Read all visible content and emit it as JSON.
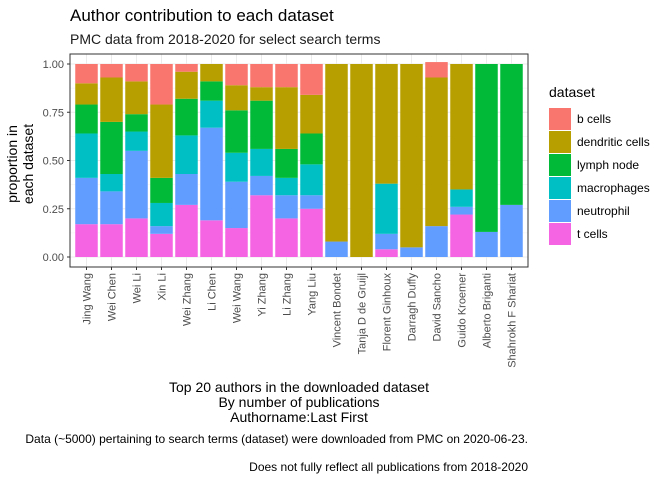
{
  "chart_data": {
    "type": "bar",
    "stacked": true,
    "title": "Author contribution to each dataset",
    "subtitle": "PMC data from 2018-2020 for select search terms",
    "ylabel_lines": [
      "proportion in",
      "each dataset"
    ],
    "xlabel_lines": [
      "Top 20 authors in the downloaded dataset",
      "By number of publications",
      "Authorname:Last First"
    ],
    "captions": [
      "Data (~5000) pertaining to search terms (dataset) were downloaded from PMC on 2020-06-23.",
      "Does not fully reflect all publications from 2018-2020"
    ],
    "ylim": [
      0,
      1
    ],
    "y_ticks": [
      {
        "value": 0,
        "label": "0.00"
      },
      {
        "value": 0.25,
        "label": "0.25"
      },
      {
        "value": 0.5,
        "label": "0.50"
      },
      {
        "value": 0.75,
        "label": "0.75"
      },
      {
        "value": 1,
        "label": "1.00"
      }
    ],
    "categories": [
      "Jing Wang",
      "Wei Chen",
      "Wei Li",
      "Xin Li",
      "Wei Zhang",
      "Li Chen",
      "Wei Wang",
      "Yi Zhang",
      "Li Zhang",
      "Yang Liu",
      "Vincent Bondet",
      "Tanja D de Gruijl",
      "Florent Ginhoux",
      "Darragh Duffy",
      "David Sancho",
      "Guido Kroemer",
      "Alberto Briganti",
      "Shahrokh F Shariat"
    ],
    "legend_title": "dataset",
    "legend_position": "right",
    "grid": true,
    "series": [
      {
        "name": "t cells",
        "color": "#F564E3",
        "values": [
          0.17,
          0.17,
          0.2,
          0.12,
          0.27,
          0.19,
          0.15,
          0.32,
          0.2,
          0.25,
          0.0,
          0.0,
          0.04,
          0.0,
          0.0,
          0.22,
          0.0,
          0.0
        ]
      },
      {
        "name": "neutrophil",
        "color": "#619CFF",
        "values": [
          0.24,
          0.17,
          0.35,
          0.04,
          0.16,
          0.48,
          0.24,
          0.1,
          0.12,
          0.07,
          0.08,
          0.0,
          0.08,
          0.05,
          0.16,
          0.04,
          0.13,
          0.27
        ]
      },
      {
        "name": "macrophages",
        "color": "#00BFC4",
        "values": [
          0.23,
          0.09,
          0.1,
          0.12,
          0.2,
          0.14,
          0.15,
          0.14,
          0.09,
          0.16,
          0.0,
          0.0,
          0.26,
          0.0,
          0.0,
          0.09,
          0.0,
          0.0
        ]
      },
      {
        "name": "lymph node",
        "color": "#00BA38",
        "values": [
          0.15,
          0.27,
          0.09,
          0.13,
          0.19,
          0.1,
          0.22,
          0.25,
          0.15,
          0.16,
          0.0,
          0.0,
          0.0,
          0.0,
          0.0,
          0.0,
          0.87,
          0.73
        ]
      },
      {
        "name": "dendritic cells",
        "color": "#B79F00",
        "values": [
          0.11,
          0.23,
          0.17,
          0.38,
          0.14,
          0.09,
          0.13,
          0.07,
          0.32,
          0.2,
          0.92,
          1.0,
          0.62,
          0.95,
          0.77,
          0.65,
          0.0,
          0.0
        ]
      },
      {
        "name": "b cells",
        "color": "#F8766D",
        "values": [
          0.1,
          0.07,
          0.09,
          0.21,
          0.04,
          0.0,
          0.11,
          0.12,
          0.12,
          0.16,
          0.0,
          0.0,
          0.0,
          0.0,
          0.08,
          0.0,
          0.0,
          0.0
        ]
      }
    ]
  }
}
